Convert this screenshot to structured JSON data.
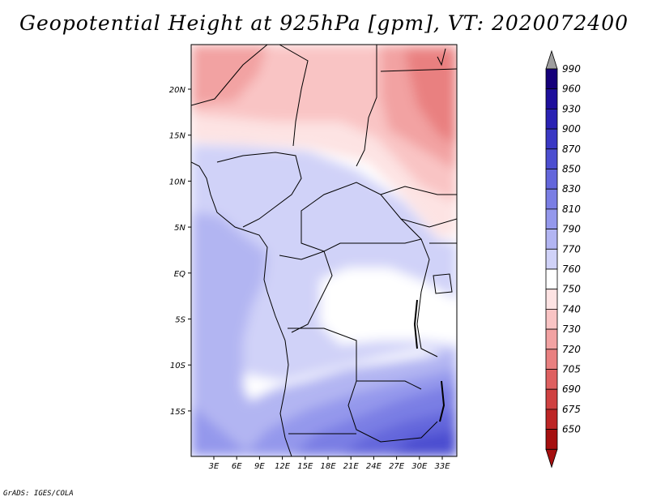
{
  "title": "Geopotential Height at 925hPa [gpm], VT: 2020072400",
  "credit": "GrADS: IGES/COLA",
  "map": {
    "lat_labels": [
      "20N",
      "15N",
      "10N",
      "5N",
      "EQ",
      "5S",
      "10S",
      "15S"
    ],
    "lon_labels": [
      "3E",
      "6E",
      "9E",
      "12E",
      "15E",
      "18E",
      "21E",
      "24E",
      "27E",
      "30E",
      "33E"
    ]
  },
  "colorbar": {
    "levels": [
      "990",
      "960",
      "930",
      "900",
      "870",
      "850",
      "830",
      "810",
      "790",
      "770",
      "760",
      "750",
      "740",
      "730",
      "720",
      "705",
      "690",
      "675",
      "650"
    ],
    "colors": [
      "#15007a",
      "#1e0f9c",
      "#2a22b4",
      "#3a38c4",
      "#4c4ed0",
      "#6366db",
      "#7a7ee4",
      "#9498ec",
      "#b2b5f2",
      "#d0d2f8",
      "#ffffff",
      "#fde3e3",
      "#f9c4c4",
      "#f2a2a2",
      "#e98080",
      "#de6060",
      "#cf4141",
      "#bd2525",
      "#a50f0f"
    ],
    "top_arrow_color": "#9e9e9e",
    "bottom_arrow_color": "#a50f0f"
  }
}
